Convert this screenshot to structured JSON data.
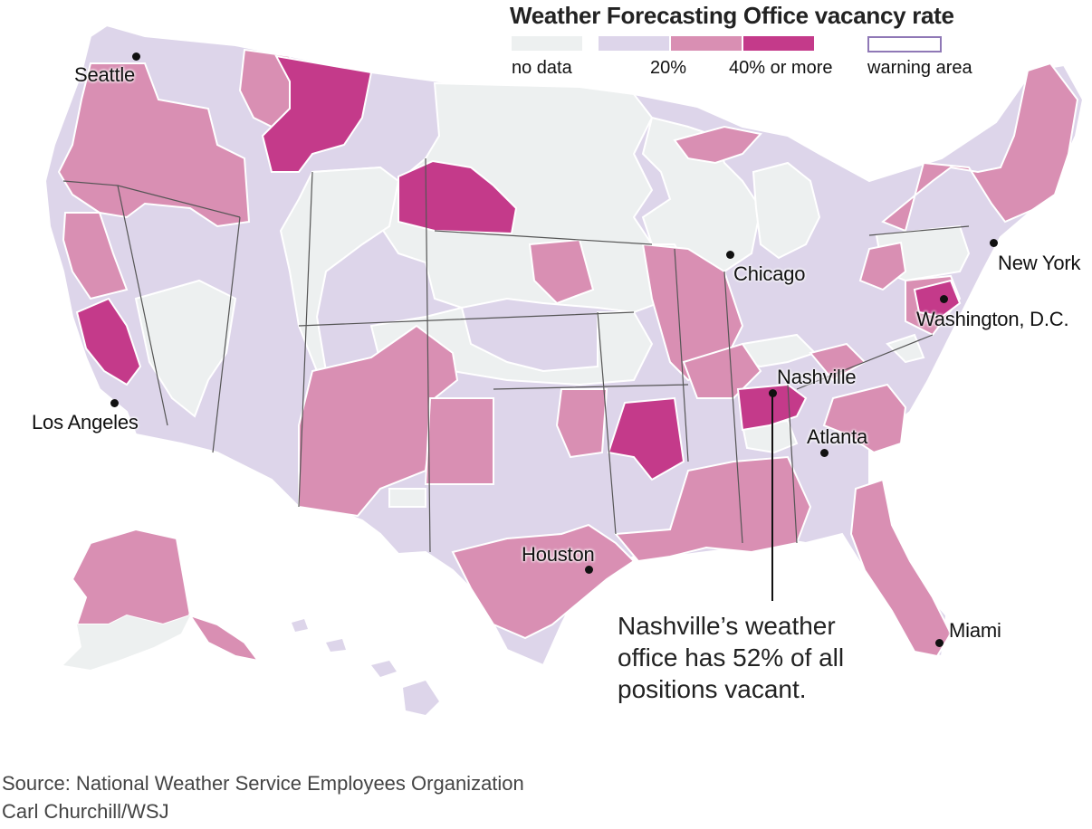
{
  "legend": {
    "title": "Weather Forecasting Office vacancy rate",
    "no_data": "no data",
    "mid": "20%",
    "high": "40% or more",
    "warning_area": "warning area"
  },
  "colors": {
    "no_data": "#edf0f0",
    "low": "#ddd5ea",
    "medium": "#d98fb3",
    "high": "#c43a8a",
    "border": "#ffffff",
    "state_line": "#555555",
    "warning_outline": "#8f78b6"
  },
  "cities": {
    "seattle": "Seattle",
    "los_angeles": "Los Angeles",
    "chicago": "Chicago",
    "new_york": "New York",
    "washington": "Washington, D.C.",
    "nashville": "Nashville",
    "atlanta": "Atlanta",
    "houston": "Houston",
    "miami": "Miami"
  },
  "annotation": "Nashville’s weather office has 52% of all positions vacant.",
  "source": "Source: National Weather Service Employees Organization",
  "credit": "Carl Churchill/WSJ"
}
